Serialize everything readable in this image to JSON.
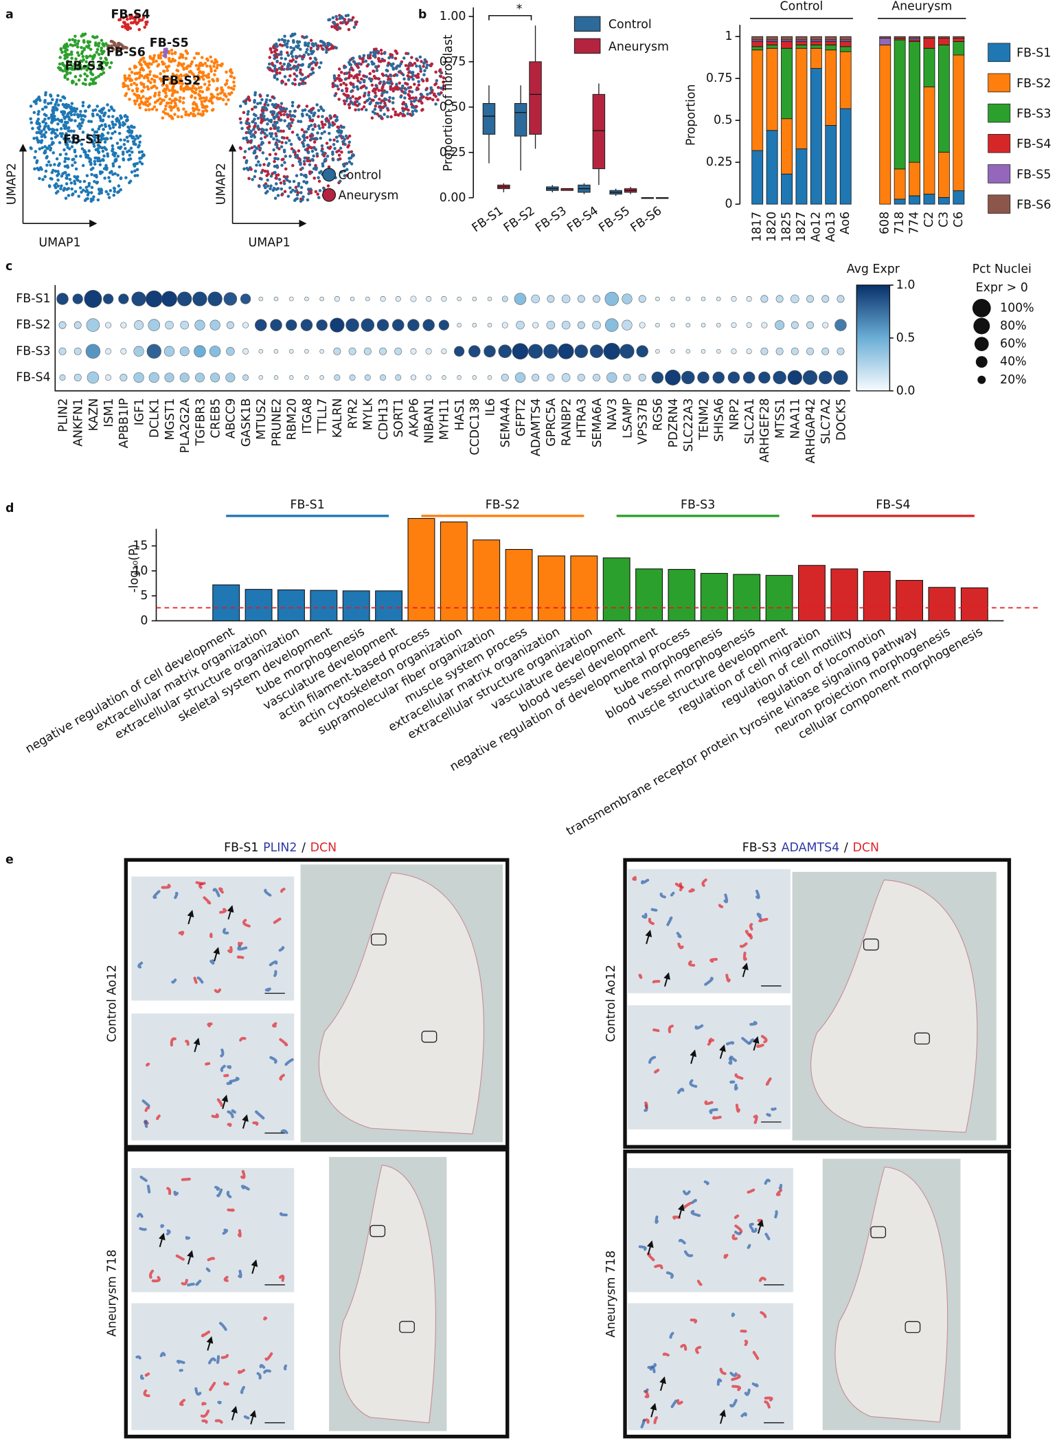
{
  "panel_labels": [
    "a",
    "b",
    "c",
    "d",
    "e"
  ],
  "umap": {
    "xlabel": "UMAP1",
    "ylabel": "UMAP2",
    "clusters": [
      {
        "name": "FB-S1",
        "color": "#1f77b4"
      },
      {
        "name": "FB-S2",
        "color": "#ff7f0e"
      },
      {
        "name": "FB-S3",
        "color": "#2ca02c"
      },
      {
        "name": "FB-S4",
        "color": "#d62728"
      },
      {
        "name": "FB-S5",
        "color": "#9467bd"
      },
      {
        "name": "FB-S6",
        "color": "#8c564b"
      }
    ],
    "conditions": [
      {
        "name": "Control",
        "color": "#2b6a9b"
      },
      {
        "name": "Aneurysm",
        "color": "#b5243e"
      }
    ]
  },
  "chart_data": [
    {
      "type": "box",
      "ylabel": "Proportion of fibroblast",
      "annotation": "*",
      "categories": [
        "FB-S1",
        "FB-S2",
        "FB-S3",
        "FB-S4",
        "FB-S5",
        "FB-S6"
      ],
      "category_colors": [
        "#1f77b4",
        "#ff7f0e",
        "#2ca02c",
        "#d62728",
        "#9467bd",
        "#8c564b"
      ],
      "ylim": [
        0,
        1.05
      ],
      "yticks": [
        {
          "value": 0,
          "label": "0.00"
        },
        {
          "value": 0.25,
          "label": "0.25"
        },
        {
          "value": 0.5,
          "label": "0.50"
        },
        {
          "value": 0.75,
          "label": "0.75"
        },
        {
          "value": 1,
          "label": "1.00"
        }
      ],
      "series": [
        {
          "name": "Control",
          "color": "#2b6a9b",
          "values": [
            [
              0.19,
              0.35,
              0.45,
              0.52,
              0.62
            ],
            [
              0.15,
              0.34,
              0.47,
              0.52,
              0.62
            ],
            [
              0.03,
              0.04,
              0.05,
              0.06,
              0.07
            ],
            [
              0.02,
              0.03,
              0.05,
              0.07,
              0.08
            ],
            [
              0.01,
              0.02,
              0.03,
              0.04,
              0.05
            ],
            [
              0,
              0,
              0,
              0,
              0
            ]
          ]
        },
        {
          "name": "Aneurysm",
          "color": "#b5243e",
          "values": [
            [
              0.03,
              0.05,
              0.06,
              0.07,
              0.08
            ],
            [
              0.27,
              0.35,
              0.57,
              0.75,
              0.95
            ],
            [
              0.04,
              0.04,
              0.05,
              0.05,
              0.05
            ],
            [
              0.07,
              0.16,
              0.37,
              0.57,
              0.63
            ],
            [
              0.02,
              0.03,
              0.04,
              0.05,
              0.06
            ],
            [
              0,
              0,
              0,
              0,
              0
            ]
          ]
        }
      ]
    },
    {
      "type": "stacked_bar",
      "ylabel": "Proportion",
      "groups": [
        {
          "name": "Control",
          "categories": [
            "1817",
            "1820",
            "1825",
            "1827",
            "Ao12",
            "Ao13",
            "Ao6"
          ]
        },
        {
          "name": "Aneurysm",
          "categories": [
            "608",
            "718",
            "774",
            "C2",
            "C3",
            "C6"
          ]
        }
      ],
      "ylim": [
        0,
        1.07
      ],
      "yticks": [
        0,
        0.25,
        0.5,
        0.75,
        1
      ],
      "series": [
        {
          "name": "FB-S1",
          "color": "#1f77b4",
          "values": [
            0.32,
            0.44,
            0.18,
            0.33,
            0.81,
            0.47,
            0.57,
            0.0,
            0.03,
            0.05,
            0.06,
            0.04,
            0.08
          ]
        },
        {
          "name": "FB-S2",
          "color": "#ff7f0e",
          "values": [
            0.6,
            0.49,
            0.33,
            0.6,
            0.12,
            0.45,
            0.34,
            0.95,
            0.18,
            0.2,
            0.64,
            0.27,
            0.81
          ]
        },
        {
          "name": "FB-S3",
          "color": "#2ca02c",
          "values": [
            0.02,
            0.02,
            0.42,
            0.02,
            0.02,
            0.03,
            0.03,
            0.0,
            0.77,
            0.72,
            0.23,
            0.64,
            0.08
          ]
        },
        {
          "name": "FB-S4",
          "color": "#d62728",
          "values": [
            0.03,
            0.02,
            0.04,
            0.02,
            0.02,
            0.02,
            0.03,
            0.0,
            0.01,
            0.01,
            0.06,
            0.04,
            0.02
          ]
        },
        {
          "name": "FB-S5",
          "color": "#9467bd",
          "values": [
            0.01,
            0.01,
            0.01,
            0.01,
            0.01,
            0.01,
            0.01,
            0.04,
            0.0,
            0.01,
            0.0,
            0.0,
            0.0
          ]
        },
        {
          "name": "FB-S6",
          "color": "#8c564b",
          "values": [
            0.02,
            0.02,
            0.02,
            0.02,
            0.02,
            0.02,
            0.02,
            0.01,
            0.01,
            0.01,
            0.01,
            0.01,
            0.01
          ]
        }
      ]
    },
    {
      "type": "dotplot",
      "rows": [
        "FB-S1",
        "FB-S2",
        "FB-S3",
        "FB-S4"
      ],
      "row_colors": [
        "#1f77b4",
        "#ff7f0e",
        "#2ca02c",
        "#d62728"
      ],
      "genes": [
        "PLIN2",
        "ANKFN1",
        "KAZN",
        "ISM1",
        "APBB1IP",
        "IGF1",
        "DCLK1",
        "MGST1",
        "PLA2G2A",
        "TGFBR3",
        "CREB5",
        "ABCC9",
        "GASK1B",
        "MTUS2",
        "PRUNE2",
        "RBM20",
        "ITGA8",
        "TTLL7",
        "KALRN",
        "RYR2",
        "MYLK",
        "CDH13",
        "SORT1",
        "AKAP6",
        "NIBAN1",
        "MYH11",
        "HAS1",
        "CCDC138",
        "IL6",
        "SEMA4A",
        "GFPT2",
        "ADAMTS4",
        "GPRC5A",
        "RANBP2",
        "HTRA3",
        "SEMA6A",
        "NAV3",
        "LSAMP",
        "VPS37B",
        "RGS6",
        "PDZRN4",
        "SLC22A3",
        "TENM2",
        "SHISA6",
        "NRP2",
        "SLC2A1",
        "ARHGEF28",
        "MTSS1",
        "NAA11",
        "ARHGAP42",
        "SLC7A2",
        "DOCK5"
      ],
      "color_values": [
        [
          0.9,
          0.9,
          0.95,
          0.9,
          0.9,
          0.9,
          0.95,
          0.95,
          0.9,
          0.9,
          0.9,
          0.85,
          0.85,
          0.1,
          0.1,
          0.05,
          0.1,
          0.1,
          0.1,
          0.1,
          0.1,
          0.1,
          0.1,
          0.1,
          0.1,
          0.1,
          0.1,
          0.1,
          0.1,
          0.2,
          0.4,
          0.2,
          0.2,
          0.2,
          0.2,
          0.2,
          0.4,
          0.3,
          0.2,
          0.1,
          0.1,
          0.1,
          0.1,
          0.1,
          0.1,
          0.1,
          0.2,
          0.2,
          0.2,
          0.2,
          0.2,
          0.2
        ],
        [
          0.2,
          0.2,
          0.3,
          0.1,
          0.1,
          0.2,
          0.3,
          0.2,
          0.2,
          0.3,
          0.3,
          0.2,
          0.1,
          0.9,
          0.9,
          0.9,
          0.9,
          0.9,
          0.95,
          0.9,
          0.9,
          0.9,
          0.9,
          0.9,
          0.9,
          0.9,
          0.1,
          0.1,
          0.1,
          0.1,
          0.2,
          0.1,
          0.2,
          0.2,
          0.2,
          0.2,
          0.4,
          0.2,
          0.1,
          0.1,
          0.1,
          0.1,
          0.1,
          0.1,
          0.1,
          0.1,
          0.1,
          0.3,
          0.2,
          0.2,
          0.1,
          0.7
        ],
        [
          0.2,
          0.2,
          0.6,
          0.1,
          0.1,
          0.3,
          0.8,
          0.3,
          0.3,
          0.5,
          0.4,
          0.3,
          0.1,
          0.1,
          0.1,
          0.1,
          0.1,
          0.1,
          0.2,
          0.2,
          0.2,
          0.2,
          0.2,
          0.1,
          0.1,
          0.1,
          0.9,
          0.9,
          0.9,
          0.9,
          0.95,
          0.9,
          0.9,
          0.95,
          0.9,
          0.9,
          0.95,
          0.9,
          0.9,
          0.1,
          0.1,
          0.1,
          0.1,
          0.1,
          0.1,
          0.1,
          0.2,
          0.2,
          0.2,
          0.2,
          0.2,
          0.2
        ],
        [
          0.2,
          0.2,
          0.3,
          0.1,
          0.2,
          0.3,
          0.3,
          0.3,
          0.3,
          0.3,
          0.3,
          0.3,
          0.2,
          0.1,
          0.1,
          0.1,
          0.1,
          0.1,
          0.2,
          0.2,
          0.2,
          0.2,
          0.2,
          0.1,
          0.1,
          0.1,
          0.1,
          0.1,
          0.1,
          0.2,
          0.3,
          0.2,
          0.2,
          0.2,
          0.2,
          0.2,
          0.3,
          0.2,
          0.2,
          0.9,
          0.95,
          0.9,
          0.9,
          0.9,
          0.9,
          0.9,
          0.9,
          0.9,
          0.95,
          0.9,
          0.9,
          0.9
        ]
      ],
      "size_values": [
        [
          40,
          30,
          90,
          30,
          30,
          60,
          80,
          70,
          60,
          60,
          60,
          50,
          30,
          5,
          5,
          5,
          5,
          5,
          8,
          5,
          5,
          8,
          8,
          10,
          8,
          8,
          5,
          5,
          5,
          10,
          40,
          20,
          15,
          20,
          15,
          15,
          55,
          30,
          15,
          5,
          5,
          5,
          5,
          5,
          8,
          8,
          15,
          15,
          20,
          15,
          15,
          15
        ],
        [
          15,
          15,
          50,
          10,
          10,
          25,
          40,
          20,
          20,
          30,
          30,
          15,
          10,
          40,
          40,
          35,
          40,
          35,
          60,
          50,
          50,
          40,
          40,
          40,
          40,
          30,
          5,
          5,
          5,
          10,
          20,
          10,
          20,
          20,
          15,
          20,
          50,
          30,
          10,
          5,
          5,
          5,
          5,
          5,
          8,
          8,
          10,
          25,
          15,
          15,
          10,
          40
        ],
        [
          15,
          15,
          60,
          10,
          10,
          30,
          60,
          30,
          25,
          40,
          35,
          20,
          10,
          5,
          5,
          5,
          5,
          5,
          15,
          15,
          15,
          15,
          15,
          10,
          10,
          8,
          30,
          40,
          40,
          50,
          75,
          60,
          60,
          70,
          50,
          50,
          80,
          60,
          40,
          5,
          5,
          5,
          5,
          5,
          8,
          8,
          15,
          15,
          15,
          15,
          15,
          15
        ],
        [
          10,
          15,
          40,
          10,
          15,
          30,
          30,
          25,
          25,
          25,
          25,
          25,
          10,
          5,
          5,
          5,
          5,
          5,
          10,
          10,
          10,
          10,
          10,
          8,
          8,
          5,
          5,
          5,
          5,
          15,
          30,
          15,
          15,
          20,
          15,
          15,
          30,
          15,
          15,
          40,
          70,
          50,
          40,
          40,
          40,
          40,
          40,
          50,
          60,
          60,
          50,
          60
        ]
      ],
      "colormap": [
        "#f7fbff",
        "#6baed6",
        "#08306b"
      ],
      "colorbar_title": "Avg Expr",
      "colorbar_ticks": [
        {
          "value": 0,
          "label": "0.0"
        },
        {
          "value": 0.5,
          "label": "0.5"
        },
        {
          "value": 1,
          "label": "1.0"
        }
      ],
      "size_title": [
        "Pct Nuclei",
        "Expr > 0"
      ],
      "size_ticks": [
        {
          "value": 100,
          "label": "100%"
        },
        {
          "value": 80,
          "label": "80%"
        },
        {
          "value": 60,
          "label": "60%"
        },
        {
          "value": 40,
          "label": "40%"
        },
        {
          "value": 20,
          "label": "20%"
        }
      ]
    },
    {
      "type": "bar",
      "ylabel": "-log₁₀(P)",
      "ylim": [
        0,
        21
      ],
      "yticks": [
        0,
        5,
        10,
        15
      ],
      "threshold": 2.6,
      "threshold_color": "#e41a1c",
      "series": [
        {
          "name": "FB-S1",
          "color": "#1f77b4",
          "categories": [
            "negative regulation of cell development",
            "extracellular matrix organization",
            "extracellular structure organization",
            "skeletal system development",
            "tube morphogenesis",
            "vasculature development"
          ],
          "values": [
            7.2,
            6.3,
            6.2,
            6.1,
            6.0,
            6.0
          ]
        },
        {
          "name": "FB-S2",
          "color": "#ff7f0e",
          "categories": [
            "actin filament-based process",
            "actin cytoskeleton organization",
            "supramolecular fiber organization",
            "muscle system process",
            "extracellular matrix organization",
            "extracellular structure organization"
          ],
          "values": [
            20.5,
            19.8,
            16.2,
            14.3,
            13.0,
            13.0
          ]
        },
        {
          "name": "FB-S3",
          "color": "#2ca02c",
          "categories": [
            "vasculature development",
            "blood vessel development",
            "negative regulation of developmental process",
            "tube morphogenesis",
            "blood vessel morphogenesis",
            "muscle structure development"
          ],
          "values": [
            12.6,
            10.4,
            10.3,
            9.5,
            9.3,
            9.1
          ]
        },
        {
          "name": "FB-S4",
          "color": "#d62728",
          "categories": [
            "regulation of cell migration",
            "regulation of cell motility",
            "regulation of locomotion",
            "transmembrane receptor protein tyrosine kinase signaling pathway",
            "neuron projection morphogenesis",
            "cellular component morphogenesis"
          ],
          "values": [
            11.1,
            10.4,
            9.9,
            8.1,
            6.7,
            6.6
          ]
        }
      ]
    }
  ],
  "panel_e": {
    "marker_color": "#2d3aa8",
    "counter_color": "#e0242b",
    "columns": [
      {
        "title": {
          "cell": "FB-S1",
          "marker": "PLIN2",
          "separator": "/",
          "counter": "DCN"
        },
        "rows": [
          "Control Ao12",
          "Aneurysm 718"
        ]
      },
      {
        "title": {
          "cell": "FB-S3",
          "marker": "ADAMTS4",
          "separator": "/",
          "counter": "DCN"
        },
        "rows": [
          "Control Ao12",
          "Aneurysm 718"
        ]
      }
    ]
  }
}
